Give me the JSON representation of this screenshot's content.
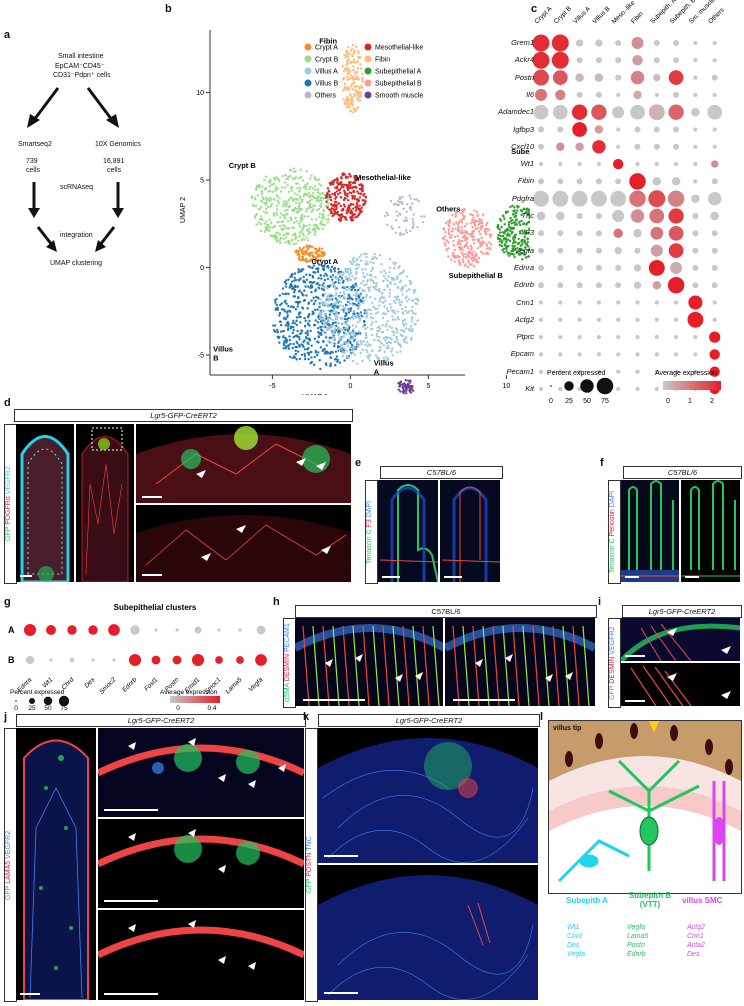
{
  "panels": {
    "a": "a",
    "b": "b",
    "c": "c",
    "d": "d",
    "e": "e",
    "f": "f",
    "g": "g",
    "h": "h",
    "i": "i",
    "j": "j",
    "k": "k",
    "l": "l"
  },
  "a": {
    "source": [
      "Small intestine",
      "EpCAM⁻CD45⁻",
      "CD31⁻Pdpn⁺ cells"
    ],
    "left_method": "Smartseq2",
    "left_count": "739",
    "left_unit": "cells",
    "right_method": "10X Genomics",
    "right_count": "16,891",
    "right_unit": "cells",
    "step1": "scRNAseq",
    "step2": "integration",
    "step3": "UMAP clustering"
  },
  "b": {
    "xlabel": "UMAP 1",
    "ylabel": "UMAP 2",
    "xticks": [
      "-5",
      "0",
      "5",
      "10"
    ],
    "yticks": [
      "10",
      "5",
      "0",
      "-5"
    ],
    "legend": [
      {
        "name": "Crypt A",
        "color": "#f28e2b"
      },
      {
        "name": "Mesothelial-like",
        "color": "#d62728"
      },
      {
        "name": "Crypt B",
        "color": "#98df8a"
      },
      {
        "name": "Fibin",
        "color": "#ffbb78"
      },
      {
        "name": "Villus A",
        "color": "#9ecae1"
      },
      {
        "name": "Subepithelial A",
        "color": "#2ca02c"
      },
      {
        "name": "Villus B",
        "color": "#1f77b4"
      },
      {
        "name": "Subepithelial B",
        "color": "#ff9896"
      },
      {
        "name": "Others",
        "color": "#c5b0d5"
      },
      {
        "name": "Smooth muscle",
        "color": "#6a3d9a"
      }
    ],
    "cluster_labels": [
      "Fibin",
      "Crypt B",
      "Mesothelial-like",
      "Others",
      "Subepithelial A",
      "Crypt A",
      "Subepithelial B",
      "Villus B",
      "Villus A",
      "Smooth muscle"
    ]
  },
  "c": {
    "columns": [
      "Crypt A",
      "Crypt B",
      "Villus A",
      "Villus B",
      "Meso.-like",
      "Fibin",
      "Subepith. A",
      "Subepith. B",
      "Sm. muscle",
      "Others"
    ],
    "genes": [
      "Grem1",
      "Ackr4",
      "Postn",
      "Il6",
      "Adamdec1",
      "Igfbp3",
      "Cxcl10",
      "Wt1",
      "Fibin",
      "Pdgfra",
      "Tnc",
      "F3",
      "Vegfa",
      "Ednra",
      "Ednrb",
      "Cnn1",
      "Actg2",
      "Ptprc",
      "Epcam",
      "Pecam1",
      "Kit"
    ],
    "size_pct": [
      [
        80,
        80,
        15,
        15,
        10,
        40,
        10,
        10,
        5,
        5
      ],
      [
        80,
        80,
        10,
        10,
        10,
        30,
        10,
        10,
        5,
        5
      ],
      [
        70,
        60,
        20,
        20,
        10,
        50,
        15,
        60,
        5,
        10
      ],
      [
        40,
        30,
        10,
        10,
        5,
        20,
        5,
        10,
        5,
        5
      ],
      [
        60,
        60,
        65,
        65,
        40,
        60,
        70,
        65,
        20,
        60
      ],
      [
        10,
        10,
        60,
        20,
        5,
        10,
        10,
        10,
        5,
        5
      ],
      [
        10,
        20,
        20,
        50,
        5,
        10,
        10,
        10,
        5,
        5
      ],
      [
        5,
        5,
        5,
        5,
        30,
        5,
        5,
        5,
        5,
        15
      ],
      [
        10,
        10,
        10,
        10,
        10,
        75,
        20,
        20,
        5,
        10
      ],
      [
        70,
        70,
        70,
        70,
        70,
        75,
        80,
        75,
        20,
        50
      ],
      [
        20,
        20,
        10,
        10,
        40,
        50,
        60,
        65,
        10,
        20
      ],
      [
        10,
        10,
        10,
        10,
        25,
        20,
        45,
        60,
        10,
        10
      ],
      [
        10,
        10,
        10,
        10,
        15,
        10,
        40,
        60,
        10,
        10
      ],
      [
        10,
        10,
        10,
        10,
        10,
        15,
        70,
        40,
        10,
        10
      ],
      [
        10,
        10,
        10,
        10,
        10,
        15,
        20,
        75,
        10,
        10
      ],
      [
        5,
        5,
        5,
        5,
        5,
        5,
        5,
        5,
        55,
        5
      ],
      [
        5,
        5,
        5,
        5,
        5,
        5,
        5,
        5,
        70,
        5
      ],
      [
        5,
        5,
        5,
        5,
        5,
        5,
        5,
        5,
        5,
        35
      ],
      [
        5,
        5,
        5,
        5,
        5,
        5,
        5,
        5,
        5,
        30
      ],
      [
        5,
        5,
        5,
        5,
        5,
        5,
        5,
        5,
        5,
        30
      ],
      [
        5,
        5,
        5,
        5,
        5,
        5,
        5,
        5,
        5,
        30
      ]
    ],
    "expr": [
      [
        2.2,
        2.2,
        0,
        0,
        0,
        0.8,
        0,
        0,
        0,
        0
      ],
      [
        2.2,
        2.2,
        0,
        0,
        0,
        0.6,
        0,
        0,
        0,
        0
      ],
      [
        1.8,
        1.6,
        0.2,
        0.2,
        0,
        1.0,
        0.2,
        2.0,
        0,
        0
      ],
      [
        1.2,
        1.0,
        0,
        0,
        0,
        0.4,
        0,
        0,
        0,
        0
      ],
      [
        0,
        0,
        2.2,
        1.6,
        0,
        0,
        0.3,
        1.4,
        0,
        0
      ],
      [
        0,
        0,
        2.4,
        0.6,
        0,
        0,
        0,
        0,
        0,
        0
      ],
      [
        0,
        0.8,
        0.6,
        2.2,
        0,
        0,
        0,
        0,
        0,
        0
      ],
      [
        0,
        0,
        0,
        0,
        2.4,
        0,
        0,
        0,
        0,
        0.8
      ],
      [
        0,
        0,
        0,
        0,
        0,
        2.4,
        0,
        0,
        0,
        0
      ],
      [
        0,
        0,
        0,
        0,
        0,
        1.2,
        1.8,
        1.0,
        0,
        0
      ],
      [
        0,
        0,
        0,
        0,
        0,
        0.8,
        1.2,
        2.0,
        0,
        0
      ],
      [
        0,
        0,
        0,
        0,
        1.2,
        0,
        1.2,
        1.6,
        0,
        0
      ],
      [
        0,
        0,
        0,
        0,
        0,
        0,
        0.6,
        2.0,
        0,
        0
      ],
      [
        0,
        0,
        0,
        0,
        0,
        0,
        2.4,
        0.4,
        0,
        0
      ],
      [
        0,
        0,
        0,
        0,
        0,
        0,
        0.6,
        2.4,
        0,
        0
      ],
      [
        0,
        0,
        0,
        0,
        0,
        0,
        0,
        0,
        2.4,
        0
      ],
      [
        0,
        0,
        0,
        0,
        0,
        0,
        0,
        0,
        2.4,
        0
      ],
      [
        0,
        0,
        0,
        0,
        0,
        0,
        0,
        0,
        0,
        2.4
      ],
      [
        0,
        0,
        0,
        0,
        0,
        0,
        0,
        0,
        0,
        2.4
      ],
      [
        0,
        0,
        0,
        0,
        0,
        0,
        0,
        0,
        0,
        2.4
      ],
      [
        0,
        0,
        0,
        0,
        0,
        0,
        0,
        0,
        0,
        2.4
      ]
    ],
    "pct_title": "Percent expressed",
    "pct_ticks": [
      "0",
      "25",
      "50",
      "75"
    ],
    "avg_title": "Average expression",
    "avg_ticks": [
      "0",
      "1",
      "2"
    ]
  },
  "d": {
    "title": "Lgr5-GFP-CreERT2",
    "stain": [
      "GFP",
      "PDGFRα",
      "VEGFR2"
    ],
    "stain_colors": [
      "#22c55e",
      "#e11d48",
      "#22d3ee"
    ]
  },
  "e": {
    "title": "C57BL/6",
    "stain": [
      "Tenascin C",
      "F3",
      "DAPI"
    ],
    "stain_colors": [
      "#22c55e",
      "#e11d48",
      "#3b82f6"
    ]
  },
  "f": {
    "title": "C57BL/6",
    "stain": [
      "Tenascin C",
      "Periostin",
      "DAPI"
    ],
    "stain_colors": [
      "#22c55e",
      "#e11d48",
      "#3b82f6"
    ]
  },
  "g": {
    "title": "Subepithelial clusters",
    "rows": [
      "A",
      "B"
    ],
    "genes": [
      "Ednra",
      "Wt1",
      "Chrd",
      "Des",
      "Smoc2",
      "Ednrb",
      "Foxl1",
      "Postn",
      "Emid1",
      "Smoc1",
      "Lama5",
      "Vegfa"
    ],
    "pct": [
      [
        75,
        50,
        45,
        45,
        70,
        45,
        5,
        5,
        25,
        5,
        5,
        40
      ],
      [
        35,
        5,
        10,
        5,
        5,
        75,
        40,
        40,
        75,
        30,
        30,
        70
      ]
    ],
    "expr": [
      [
        0.45,
        0.45,
        0.45,
        0.45,
        0.45,
        0,
        0,
        0,
        0,
        0,
        0,
        0
      ],
      [
        0,
        0,
        0,
        0,
        0,
        0.45,
        0.45,
        0.45,
        0.45,
        0.45,
        0.45,
        0.45
      ]
    ],
    "pct_title": "Percent expressed",
    "pct_ticks": [
      "0",
      "25",
      "50",
      "75"
    ],
    "avg_title": "Average expression",
    "avg_ticks": [
      "0",
      "0.4"
    ]
  },
  "h": {
    "title": "C57BL/6",
    "stain": [
      "αSMA",
      "DESMIN",
      "PECAM1"
    ],
    "stain_colors": [
      "#22c55e",
      "#e11d48",
      "#3b82f6"
    ]
  },
  "i": {
    "title": "Lgr5-GFP-CreERT2",
    "stain": [
      "GFP",
      "DESMIN",
      "VEGFR2"
    ],
    "stain_colors": [
      "#22c55e",
      "#e11d48",
      "#3b82f6"
    ]
  },
  "j": {
    "title": "Lgr5-GFP-CreERT2",
    "stain": [
      "GFP",
      "LAMA5",
      "VEGFR2"
    ],
    "stain_colors": [
      "#22c55e",
      "#e11d48",
      "#3b82f6"
    ]
  },
  "k": {
    "title": "Lgr5-GFP-CreERT2",
    "stain": [
      "GFP",
      "POSTN",
      "TNC"
    ],
    "stain_colors": [
      "#22c55e",
      "#e11d48",
      "#3b82f6"
    ]
  },
  "l": {
    "tip": "villus tip",
    "groups": [
      {
        "name": "Subepith A",
        "color": "#22d3ee",
        "markers": [
          "Wt1",
          "Chrd",
          "Des",
          "Vegfa"
        ]
      },
      {
        "name": "Subepith B (VTT)",
        "color": "#22c55e",
        "markers": [
          "Vegfa",
          "Lama5",
          "Postn",
          "Ednrb"
        ]
      },
      {
        "name": "villus SMC",
        "color": "#d946ef",
        "markers": [
          "Actg2",
          "Cnn1",
          "Acta2",
          "Des"
        ]
      }
    ]
  }
}
